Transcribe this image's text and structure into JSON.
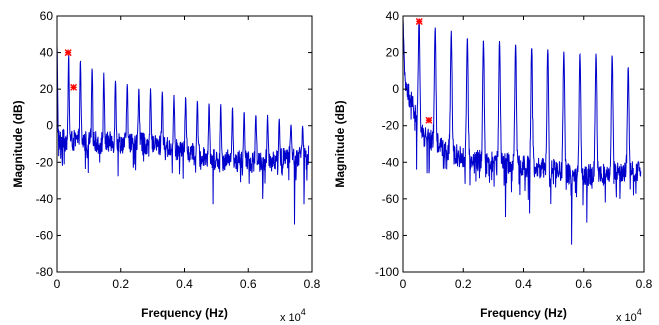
{
  "chart_data": [
    {
      "type": "line",
      "xlabel": "Frequency (Hz)",
      "ylabel": "Magnitude (dB)",
      "x_multiplier": "x 10",
      "x_multiplier_exp": "4",
      "xlim": [
        0,
        0.8
      ],
      "ylim": [
        -80,
        60
      ],
      "xticks": [
        0,
        0.2,
        0.4,
        0.6,
        0.8
      ],
      "xtick_labels": [
        "0",
        "0.2",
        "0.4",
        "0.6",
        "0.8"
      ],
      "yticks": [
        60,
        40,
        20,
        0,
        -20,
        -40,
        -60,
        -80
      ],
      "ytick_labels": [
        "60",
        "40",
        "20",
        "0",
        "-20",
        "-40",
        "-60",
        "-80"
      ],
      "grid": false,
      "series": [
        {
          "color": "#0000cc",
          "fundamental": 0.0367,
          "x_end": 0.79,
          "peak_envelope": [
            [
              0,
              44
            ],
            [
              0.1,
              33
            ],
            [
              0.2,
              24
            ],
            [
              0.35,
              18
            ],
            [
              0.5,
              12
            ],
            [
              0.6,
              8
            ],
            [
              0.7,
              3
            ],
            [
              0.79,
              0
            ]
          ],
          "floor_envelope": [
            [
              0,
              -8
            ],
            [
              0.3,
              -10
            ],
            [
              0.5,
              -18
            ],
            [
              0.6,
              -20
            ],
            [
              0.79,
              -16
            ]
          ],
          "dips": [
            [
              0.016,
              -20
            ],
            [
              0.49,
              -43
            ],
            [
              0.645,
              -40
            ],
            [
              0.745,
              -54
            ],
            [
              0.775,
              -43
            ]
          ]
        }
      ],
      "markers": [
        {
          "x": 0.035,
          "y": 40,
          "color": "#ff0000",
          "symbol": "*"
        },
        {
          "x": 0.052,
          "y": 21,
          "color": "#ff0000",
          "symbol": "*"
        }
      ]
    },
    {
      "type": "line",
      "xlabel": "Frequency (Hz)",
      "ylabel": "Magnitude (dB)",
      "x_multiplier": "x 10",
      "x_multiplier_exp": "4",
      "xlim": [
        0,
        0.8
      ],
      "ylim": [
        -100,
        40
      ],
      "xticks": [
        0,
        0.2,
        0.4,
        0.6,
        0.8
      ],
      "xtick_labels": [
        "0",
        "0.2",
        "0.4",
        "0.6",
        "0.8"
      ],
      "yticks": [
        40,
        20,
        0,
        -20,
        -40,
        -60,
        -80,
        -100
      ],
      "ytick_labels": [
        "40",
        "20",
        "0",
        "-20",
        "-40",
        "-60",
        "-80",
        "-100"
      ],
      "grid": false,
      "series": [
        {
          "color": "#0000cc",
          "fundamental": 0.0534,
          "x_end": 0.79,
          "peak_envelope": [
            [
              0.0534,
              38
            ],
            [
              0.107,
              34
            ],
            [
              0.2,
              29
            ],
            [
              0.3,
              27
            ],
            [
              0.4,
              24
            ],
            [
              0.5,
              22
            ],
            [
              0.6,
              20
            ],
            [
              0.7,
              19
            ],
            [
              0.79,
              8
            ]
          ],
          "floor_envelope": [
            [
              0,
              5
            ],
            [
              0.03,
              -8
            ],
            [
              0.06,
              -25
            ],
            [
              0.2,
              -38
            ],
            [
              0.4,
              -42
            ],
            [
              0.6,
              -47
            ],
            [
              0.79,
              -45
            ]
          ],
          "dips": [
            [
              0.045,
              -44
            ],
            [
              0.086,
              -46
            ],
            [
              0.34,
              -70
            ],
            [
              0.42,
              -68
            ],
            [
              0.56,
              -85
            ],
            [
              0.61,
              -73
            ],
            [
              0.72,
              -60
            ]
          ]
        }
      ],
      "markers": [
        {
          "x": 0.054,
          "y": 37,
          "color": "#ff0000",
          "symbol": "*"
        },
        {
          "x": 0.086,
          "y": -17,
          "color": "#ff0000",
          "symbol": "*"
        }
      ]
    }
  ]
}
